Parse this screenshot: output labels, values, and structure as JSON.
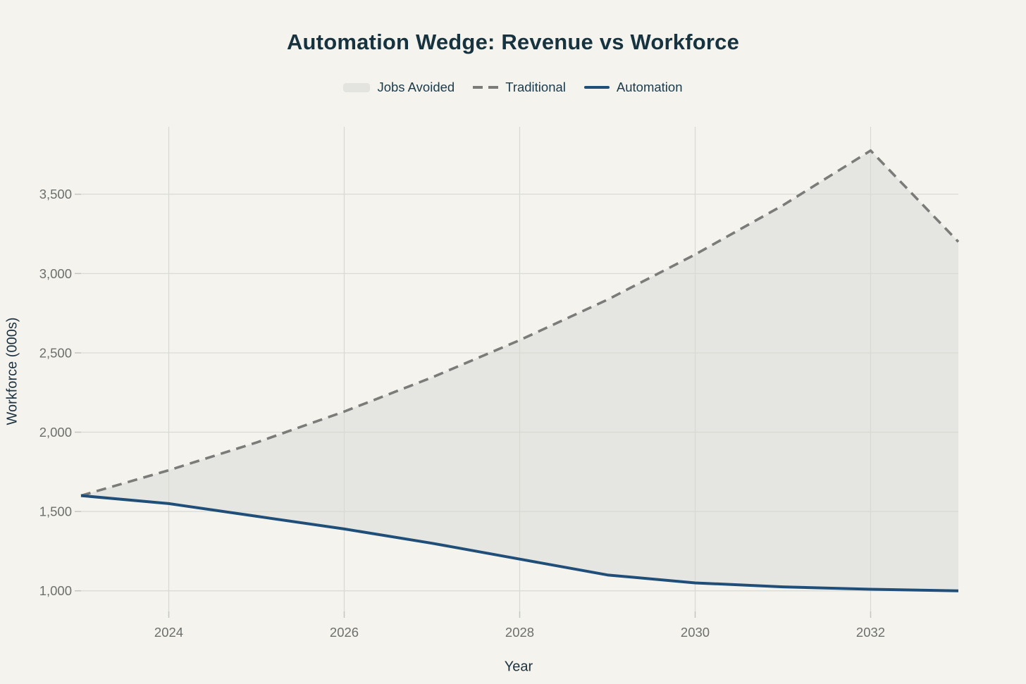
{
  "chart": {
    "title": "Automation Wedge: Revenue vs Workforce",
    "xlabel": "Year",
    "ylabel": "Workforce (000s)"
  },
  "legend": {
    "items": [
      {
        "label": "Jobs Avoided",
        "swatch": "area"
      },
      {
        "label": "Traditional",
        "swatch": "dashed-line"
      },
      {
        "label": "Automation",
        "swatch": "solid-line"
      }
    ]
  },
  "colors": {
    "background": "#f4f3ee",
    "title_text": "#17333f",
    "axis_title_text": "#1c3240",
    "tick_label_text": "#6d6f6c",
    "gridline": "#d9d9d3",
    "tick_mark": "#c6c6c0",
    "area_fill": "#e5e5e1",
    "traditional_line": "#7b7b79",
    "automation_line": "#1f4e79"
  },
  "chart_data": {
    "type": "line",
    "title": "Automation Wedge: Revenue vs Workforce",
    "xlabel": "Year",
    "ylabel": "Workforce (000s)",
    "x": [
      2023,
      2024,
      2025,
      2026,
      2027,
      2028,
      2029,
      2030,
      2031,
      2032,
      2033
    ],
    "series": [
      {
        "name": "Traditional",
        "style": "dashed",
        "color": "#7b7b79",
        "values": [
          1600,
          1760,
          1935,
          2130,
          2345,
          2580,
          2835,
          3120,
          3430,
          3775,
          3200
        ]
      },
      {
        "name": "Automation",
        "style": "solid",
        "color": "#1f4e79",
        "values": [
          1600,
          1550,
          1470,
          1390,
          1300,
          1200,
          1100,
          1050,
          1025,
          1010,
          1000
        ]
      }
    ],
    "area_between": {
      "name": "Jobs Avoided",
      "upper": "Traditional",
      "lower": "Automation",
      "color": "#e5e5e1"
    },
    "x_ticks": [
      2024,
      2026,
      2028,
      2030,
      2032
    ],
    "x_tick_labels": [
      "2024",
      "2026",
      "2028",
      "2030",
      "2032"
    ],
    "y_ticks": [
      1000,
      1500,
      2000,
      2500,
      3000,
      3500
    ],
    "y_tick_labels": [
      "1,000",
      "1,500",
      "2,000",
      "2,500",
      "3,000",
      "3,500"
    ],
    "xlim": [
      2023,
      2033
    ],
    "ylim": [
      870,
      3925
    ],
    "grid": true,
    "legend_position": "top"
  }
}
